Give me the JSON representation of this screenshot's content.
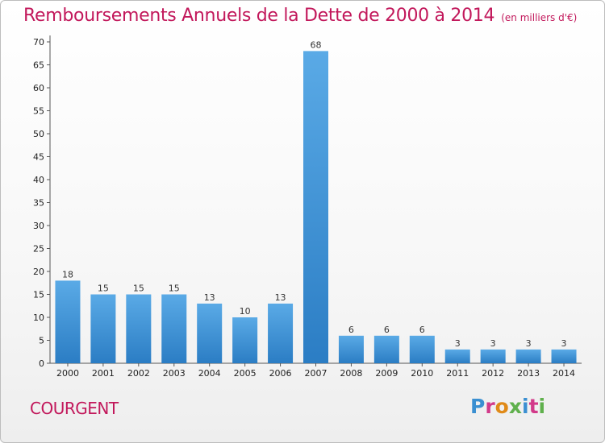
{
  "chart_data": {
    "type": "bar",
    "title": "Remboursements Annuels de la Dette de 2000 à 2014",
    "subtitle": "(en milliers d'€)",
    "categories": [
      "2000",
      "2001",
      "2002",
      "2003",
      "2004",
      "2005",
      "2006",
      "2007",
      "2008",
      "2009",
      "2010",
      "2011",
      "2012",
      "2013",
      "2014"
    ],
    "values": [
      18,
      15,
      15,
      15,
      13,
      10,
      13,
      68,
      6,
      6,
      6,
      3,
      3,
      3,
      3
    ],
    "ylim": [
      0,
      70
    ],
    "yticks": [
      0,
      5,
      10,
      15,
      20,
      25,
      30,
      35,
      40,
      45,
      50,
      55,
      60,
      65,
      70
    ],
    "xlabel": "",
    "ylabel": "",
    "grid": false,
    "colors": {
      "bar_light": "#5aaae6",
      "bar_dark": "#2b7dc4",
      "axis": "#555555",
      "title": "#c2185b"
    }
  },
  "place_name": "COURGENT",
  "logo": {
    "text": "Proxiti",
    "letter_colors": [
      "#3a8fd1",
      "#d23a8a",
      "#e08a18",
      "#5fb04c",
      "#3a8fd1",
      "#d23a8a",
      "#5fb04c"
    ]
  }
}
